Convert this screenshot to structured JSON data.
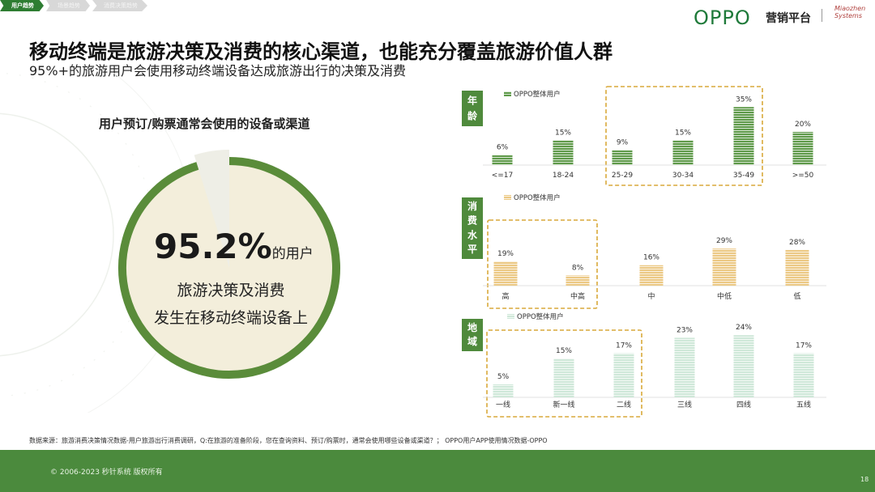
{
  "nav": {
    "tabs": [
      {
        "label": "用户趋势",
        "active": true
      },
      {
        "label": "场景趋势",
        "active": false
      },
      {
        "label": "消费决策趋势",
        "active": false
      }
    ]
  },
  "header": {
    "logo": "OPPO",
    "platform": "营销平台",
    "partner": "Miaozhen Systems"
  },
  "title": "移动终端是旅游决策及消费的核心渠道，也能充分覆盖旅游价值人群",
  "subtitle": "95%+的旅游用户会使用移动终端设备达成旅游出行的决策及消费",
  "left": {
    "question": "用户预订/购票通常会使用的设备或渠道",
    "stat_value": "95.2%",
    "stat_fraction": 0.952,
    "stat_unit": "的用户",
    "line1": "旅游决策及消费",
    "line2": "发生在移动终端设备上"
  },
  "colors": {
    "age": "#5f9a4a",
    "spend": "#ecc985",
    "region": "#cfe8d9",
    "brand": "#1f7a3a",
    "ring": "#5a8c3a",
    "highlight": "#d9a93a",
    "footer": "#4b8a3d"
  },
  "chart_data": [
    {
      "type": "bar",
      "panel_label": "年龄",
      "legend": "OPPO整体用户",
      "categories": [
        "<=17",
        "18-24",
        "25-29",
        "30-34",
        "35-49",
        ">=50"
      ],
      "values": [
        6,
        15,
        9,
        15,
        35,
        20
      ],
      "labels": [
        "6%",
        "15%",
        "9%",
        "15%",
        "35%",
        "20%"
      ],
      "highlight": [
        "25-29",
        "30-34",
        "35-49"
      ]
    },
    {
      "type": "bar",
      "panel_label": "消费水平",
      "legend": "OPPO整体用户",
      "categories": [
        "高",
        "中高",
        "中",
        "中低",
        "低"
      ],
      "values": [
        19,
        8,
        16,
        29,
        28
      ],
      "labels": [
        "19%",
        "8%",
        "16%",
        "29%",
        "28%"
      ],
      "highlight": [
        "高",
        "中高"
      ]
    },
    {
      "type": "bar",
      "panel_label": "地域",
      "legend": "OPPO整体用户",
      "categories": [
        "一线",
        "新一线",
        "二线",
        "三线",
        "四线",
        "五线"
      ],
      "values": [
        5,
        15,
        17,
        23,
        24,
        17
      ],
      "labels": [
        "5%",
        "15%",
        "17%",
        "23%",
        "24%",
        "17%"
      ],
      "highlight": [
        "一线",
        "新一线",
        "二线"
      ]
    }
  ],
  "source": "数据来源：旅游消费决策情况数据-用户旅游出行消费调研，Q:在旅游的准备阶段，您在查询资料、预订/购票时，通常会使用哪些设备或渠道？； OPPO用户APP使用情况数据-OPPO",
  "footer": {
    "copyright": "© 2006-2023 秒针系统 版权所有",
    "page": "18"
  }
}
